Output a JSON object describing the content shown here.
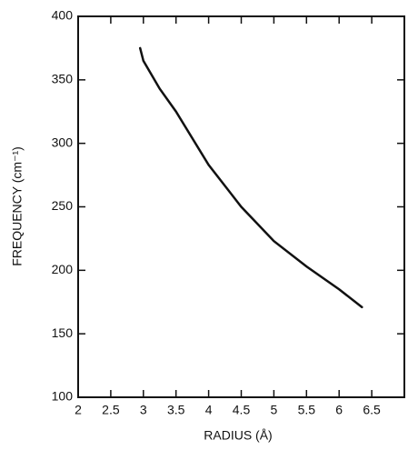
{
  "chart_data": {
    "type": "line",
    "x_label": "RADIUS (Å)",
    "y_label": "FREQUENCY (cm⁻¹)",
    "xlim": [
      2,
      7
    ],
    "ylim": [
      100,
      400
    ],
    "xticks": [
      2,
      2.5,
      3,
      3.5,
      4,
      4.5,
      5,
      5.5,
      6,
      6.5
    ],
    "yticks": [
      100,
      150,
      200,
      250,
      300,
      350,
      400
    ],
    "grid": false,
    "series": [
      {
        "color": "#111111",
        "x": [
          2.95,
          3.0,
          3.25,
          3.5,
          4.0,
          4.5,
          5.0,
          5.5,
          6.0,
          6.35
        ],
        "values": [
          375,
          365,
          343,
          325,
          283,
          250,
          223,
          203,
          185,
          171
        ]
      }
    ]
  }
}
